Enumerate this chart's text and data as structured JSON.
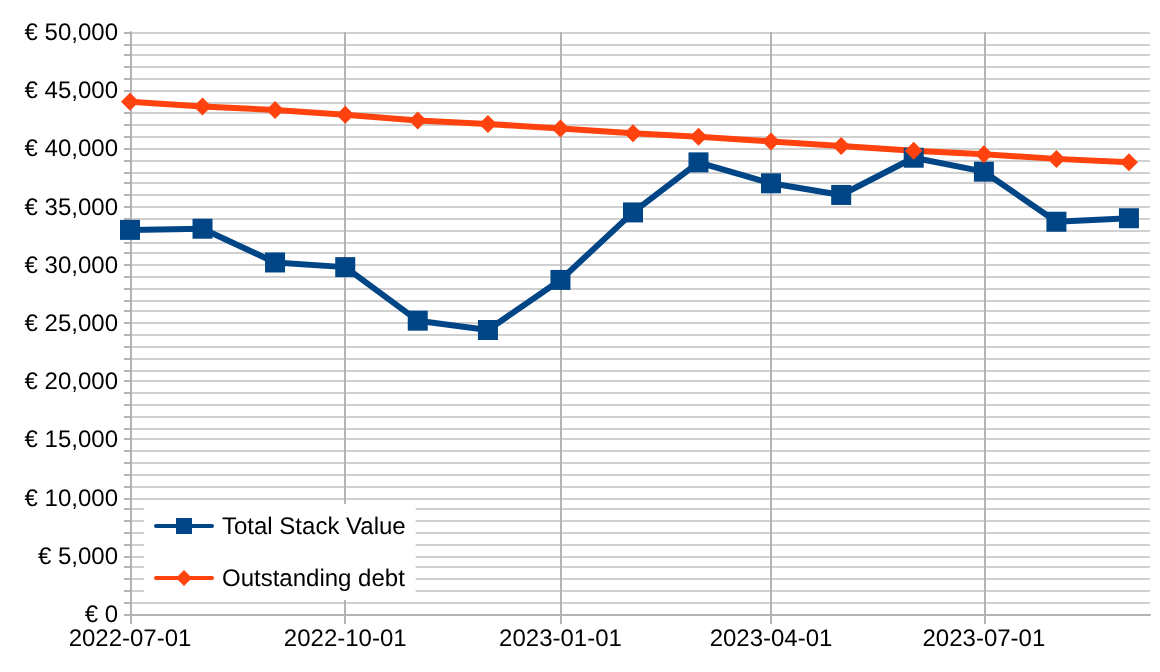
{
  "chart_data": {
    "type": "line",
    "x": [
      "2022-07",
      "2022-08",
      "2022-09",
      "2022-10",
      "2022-11",
      "2022-12",
      "2023-01",
      "2023-02",
      "2023-03",
      "2023-04",
      "2023-05",
      "2023-06",
      "2023-07",
      "2023-08",
      "2023-09"
    ],
    "series": [
      {
        "name": "Total Stack Value",
        "color": "#004586",
        "marker": "square",
        "values": [
          33000,
          33100,
          30200,
          29800,
          25200,
          24400,
          28700,
          34500,
          38800,
          37000,
          36000,
          39200,
          38000,
          33700,
          34000
        ]
      },
      {
        "name": "Outstanding debt",
        "color": "#ff420e",
        "marker": "diamond",
        "values": [
          44000,
          43600,
          43300,
          42900,
          42400,
          42100,
          41700,
          41300,
          41000,
          40600,
          40200,
          39800,
          39500,
          39100,
          38800
        ]
      }
    ],
    "xlim": [
      "2022-07-01",
      "2023-09-10"
    ],
    "xticks": [
      "2022-07-01",
      "2022-10-01",
      "2023-01-01",
      "2023-04-01",
      "2023-07-01"
    ],
    "ylim": [
      0,
      50000
    ],
    "yticks": [
      {
        "value": 0,
        "label": "€ 0"
      },
      {
        "value": 1000,
        "label": null
      },
      {
        "value": 2000,
        "label": null
      },
      {
        "value": 3000,
        "label": null
      },
      {
        "value": 4000,
        "label": null
      },
      {
        "value": 5000,
        "label": "€ 5,000"
      },
      {
        "value": 6000,
        "label": null
      },
      {
        "value": 7000,
        "label": null
      },
      {
        "value": 8000,
        "label": null
      },
      {
        "value": 9000,
        "label": null
      },
      {
        "value": 10000,
        "label": "€ 10,000"
      },
      {
        "value": 11000,
        "label": null
      },
      {
        "value": 12000,
        "label": null
      },
      {
        "value": 13000,
        "label": null
      },
      {
        "value": 14000,
        "label": null
      },
      {
        "value": 15000,
        "label": "€ 15,000"
      },
      {
        "value": 16000,
        "label": null
      },
      {
        "value": 17000,
        "label": null
      },
      {
        "value": 18000,
        "label": null
      },
      {
        "value": 19000,
        "label": null
      },
      {
        "value": 20000,
        "label": "€ 20,000"
      },
      {
        "value": 21000,
        "label": null
      },
      {
        "value": 22000,
        "label": null
      },
      {
        "value": 23000,
        "label": null
      },
      {
        "value": 24000,
        "label": null
      },
      {
        "value": 25000,
        "label": "€ 25,000"
      },
      {
        "value": 26000,
        "label": null
      },
      {
        "value": 27000,
        "label": null
      },
      {
        "value": 28000,
        "label": null
      },
      {
        "value": 29000,
        "label": null
      },
      {
        "value": 30000,
        "label": "€ 30,000"
      },
      {
        "value": 31000,
        "label": null
      },
      {
        "value": 32000,
        "label": null
      },
      {
        "value": 33000,
        "label": null
      },
      {
        "value": 34000,
        "label": null
      },
      {
        "value": 35000,
        "label": "€ 35,000"
      },
      {
        "value": 36000,
        "label": null
      },
      {
        "value": 37000,
        "label": null
      },
      {
        "value": 38000,
        "label": null
      },
      {
        "value": 39000,
        "label": null
      },
      {
        "value": 40000,
        "label": "€ 40,000"
      },
      {
        "value": 41000,
        "label": null
      },
      {
        "value": 42000,
        "label": null
      },
      {
        "value": 43000,
        "label": null
      },
      {
        "value": 44000,
        "label": null
      },
      {
        "value": 45000,
        "label": "€ 45,000"
      },
      {
        "value": 46000,
        "label": null
      },
      {
        "value": 47000,
        "label": null
      },
      {
        "value": 48000,
        "label": null
      },
      {
        "value": 49000,
        "label": null
      },
      {
        "value": 50000,
        "label": "€ 50,000"
      }
    ],
    "grid": true,
    "legend": "bottom left",
    "line_style": "solid"
  }
}
